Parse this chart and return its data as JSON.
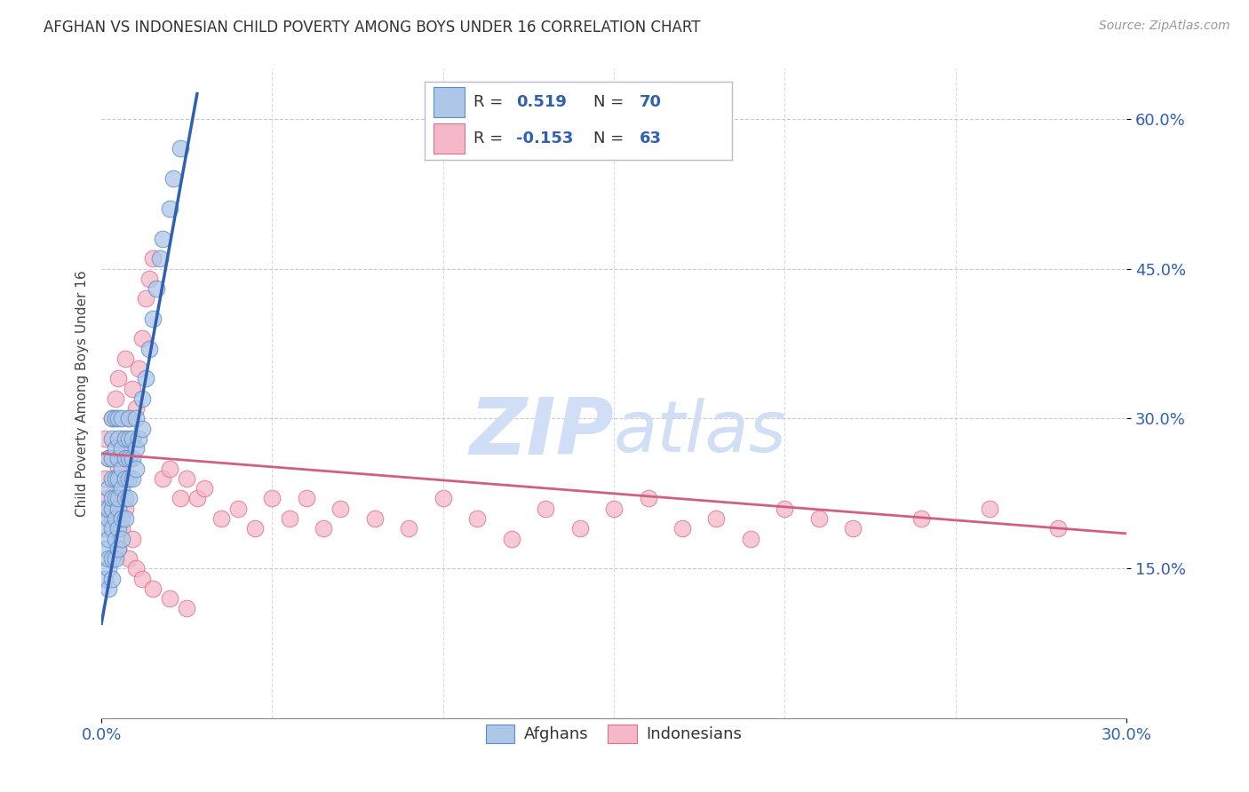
{
  "title": "AFGHAN VS INDONESIAN CHILD POVERTY AMONG BOYS UNDER 16 CORRELATION CHART",
  "source": "Source: ZipAtlas.com",
  "ylabel": "Child Poverty Among Boys Under 16",
  "xlim": [
    0.0,
    0.3
  ],
  "ylim": [
    0.0,
    0.65
  ],
  "yticks": [
    0.15,
    0.3,
    0.45,
    0.6
  ],
  "ytick_labels": [
    "15.0%",
    "30.0%",
    "45.0%",
    "60.0%"
  ],
  "xtick_positions": [
    0.0,
    0.3
  ],
  "xtick_labels": [
    "0.0%",
    "30.0%"
  ],
  "afghan_R": 0.519,
  "afghan_N": 70,
  "indonesian_R": -0.153,
  "indonesian_N": 63,
  "afghan_color": "#aec6e8",
  "afghan_edge_color": "#5b8ec4",
  "afghan_line_color": "#3060b0",
  "indonesian_color": "#f5b8c8",
  "indonesian_edge_color": "#d97090",
  "indonesian_line_color": "#d06080",
  "watermark_zip": "ZIP",
  "watermark_atlas": "atlas",
  "watermark_color": "#d0dff5",
  "background_color": "#ffffff",
  "legend_r_color": "#3060b0",
  "legend_n_color": "#3060b0",
  "tick_color": "#3060b0",
  "afghan_line_x": [
    0.0,
    0.028
  ],
  "afghan_line_y": [
    0.095,
    0.625
  ],
  "indonesian_line_x": [
    0.0,
    0.3
  ],
  "indonesian_line_y": [
    0.265,
    0.185
  ],
  "afghan_x": [
    0.001,
    0.001,
    0.001,
    0.001,
    0.002,
    0.002,
    0.002,
    0.002,
    0.002,
    0.002,
    0.002,
    0.002,
    0.003,
    0.003,
    0.003,
    0.003,
    0.003,
    0.003,
    0.003,
    0.003,
    0.003,
    0.004,
    0.004,
    0.004,
    0.004,
    0.004,
    0.004,
    0.004,
    0.005,
    0.005,
    0.005,
    0.005,
    0.005,
    0.005,
    0.005,
    0.005,
    0.006,
    0.006,
    0.006,
    0.006,
    0.006,
    0.006,
    0.007,
    0.007,
    0.007,
    0.007,
    0.007,
    0.008,
    0.008,
    0.008,
    0.008,
    0.008,
    0.009,
    0.009,
    0.009,
    0.01,
    0.01,
    0.01,
    0.011,
    0.012,
    0.012,
    0.013,
    0.014,
    0.015,
    0.016,
    0.017,
    0.018,
    0.02,
    0.021,
    0.023
  ],
  "afghan_y": [
    0.14,
    0.17,
    0.19,
    0.21,
    0.13,
    0.15,
    0.16,
    0.18,
    0.2,
    0.21,
    0.23,
    0.26,
    0.14,
    0.16,
    0.19,
    0.21,
    0.22,
    0.24,
    0.26,
    0.28,
    0.3,
    0.16,
    0.18,
    0.2,
    0.22,
    0.24,
    0.27,
    0.3,
    0.17,
    0.19,
    0.21,
    0.22,
    0.24,
    0.26,
    0.28,
    0.3,
    0.18,
    0.2,
    0.23,
    0.25,
    0.27,
    0.3,
    0.2,
    0.22,
    0.24,
    0.26,
    0.28,
    0.22,
    0.24,
    0.26,
    0.28,
    0.3,
    0.24,
    0.26,
    0.28,
    0.25,
    0.27,
    0.3,
    0.28,
    0.29,
    0.32,
    0.34,
    0.37,
    0.4,
    0.43,
    0.46,
    0.48,
    0.51,
    0.54,
    0.57
  ],
  "indonesian_x": [
    0.001,
    0.001,
    0.002,
    0.002,
    0.003,
    0.003,
    0.004,
    0.004,
    0.005,
    0.005,
    0.006,
    0.007,
    0.007,
    0.008,
    0.009,
    0.01,
    0.011,
    0.012,
    0.013,
    0.014,
    0.015,
    0.018,
    0.02,
    0.023,
    0.025,
    0.028,
    0.03,
    0.035,
    0.04,
    0.045,
    0.05,
    0.055,
    0.06,
    0.065,
    0.07,
    0.08,
    0.09,
    0.1,
    0.11,
    0.12,
    0.13,
    0.14,
    0.15,
    0.16,
    0.17,
    0.18,
    0.19,
    0.2,
    0.21,
    0.22,
    0.24,
    0.26,
    0.28,
    0.005,
    0.006,
    0.007,
    0.008,
    0.009,
    0.01,
    0.012,
    0.015,
    0.02,
    0.025
  ],
  "indonesian_y": [
    0.24,
    0.28,
    0.22,
    0.26,
    0.2,
    0.3,
    0.23,
    0.32,
    0.25,
    0.34,
    0.28,
    0.27,
    0.36,
    0.3,
    0.33,
    0.31,
    0.35,
    0.38,
    0.42,
    0.44,
    0.46,
    0.24,
    0.25,
    0.22,
    0.24,
    0.22,
    0.23,
    0.2,
    0.21,
    0.19,
    0.22,
    0.2,
    0.22,
    0.19,
    0.21,
    0.2,
    0.19,
    0.22,
    0.2,
    0.18,
    0.21,
    0.19,
    0.21,
    0.22,
    0.19,
    0.2,
    0.18,
    0.21,
    0.2,
    0.19,
    0.2,
    0.21,
    0.19,
    0.17,
    0.19,
    0.21,
    0.16,
    0.18,
    0.15,
    0.14,
    0.13,
    0.12,
    0.11
  ]
}
